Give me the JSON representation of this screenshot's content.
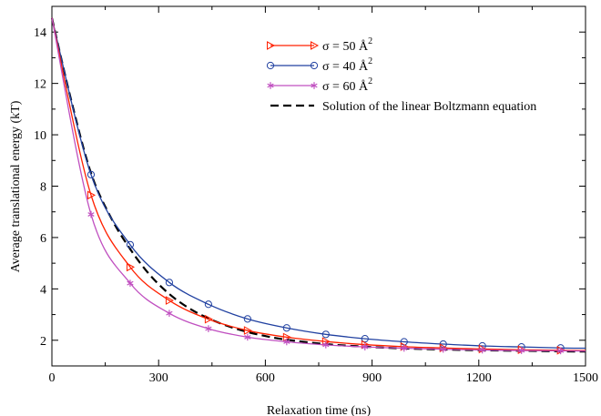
{
  "chart_data": {
    "type": "line",
    "xlabel": "Relaxation time (ns)",
    "ylabel": "Average translational energy (kT)",
    "xlim": [
      0,
      1500
    ],
    "ylim": [
      1,
      15
    ],
    "x_ticks": [
      "0",
      "300",
      "600",
      "900",
      "1200",
      "1500"
    ],
    "y_ticks": [
      "2",
      "4",
      "6",
      "8",
      "10",
      "12",
      "14"
    ],
    "grid": false,
    "legend_position": "top-right",
    "series": [
      {
        "name": "σ = 50 Å",
        "superscript": "2",
        "color": "#ff2000",
        "marker": "triangle-right",
        "x": [
          0,
          110,
          220,
          330,
          440,
          550,
          660,
          770,
          880,
          990,
          1100,
          1210,
          1320,
          1430,
          1500
        ],
        "y": [
          14.55,
          7.65,
          4.85,
          3.55,
          2.82,
          2.38,
          2.12,
          1.95,
          1.83,
          1.75,
          1.7,
          1.66,
          1.63,
          1.61,
          1.6
        ]
      },
      {
        "name": "σ = 40 Å",
        "superscript": "2",
        "color": "#2040a0",
        "marker": "circle",
        "x": [
          0,
          110,
          220,
          330,
          440,
          550,
          660,
          770,
          880,
          990,
          1100,
          1210,
          1320,
          1430,
          1500
        ],
        "y": [
          14.55,
          8.45,
          5.72,
          4.25,
          3.4,
          2.83,
          2.48,
          2.23,
          2.06,
          1.94,
          1.85,
          1.78,
          1.74,
          1.7,
          1.69
        ]
      },
      {
        "name": "σ = 60 Å",
        "superscript": "2",
        "color": "#c050c0",
        "marker": "star",
        "x": [
          0,
          110,
          220,
          330,
          440,
          550,
          660,
          770,
          880,
          990,
          1100,
          1210,
          1320,
          1430,
          1500
        ],
        "y": [
          14.55,
          6.9,
          4.22,
          3.05,
          2.45,
          2.12,
          1.94,
          1.82,
          1.74,
          1.69,
          1.65,
          1.62,
          1.6,
          1.59,
          1.58
        ]
      },
      {
        "name": "Solution of the linear Boltzmann equation",
        "superscript": "",
        "color": "#000000",
        "marker": "none",
        "dash": "dashed",
        "x": [
          0,
          55,
          110,
          165,
          220,
          275,
          330,
          385,
          440,
          495,
          550,
          605,
          660,
          770,
          880,
          990,
          1100,
          1210,
          1320,
          1430,
          1500
        ],
        "y": [
          14.55,
          11.3,
          8.5,
          6.8,
          5.55,
          4.55,
          3.8,
          3.25,
          2.85,
          2.55,
          2.32,
          2.15,
          2.02,
          1.85,
          1.75,
          1.68,
          1.64,
          1.61,
          1.59,
          1.57,
          1.56
        ]
      }
    ]
  }
}
